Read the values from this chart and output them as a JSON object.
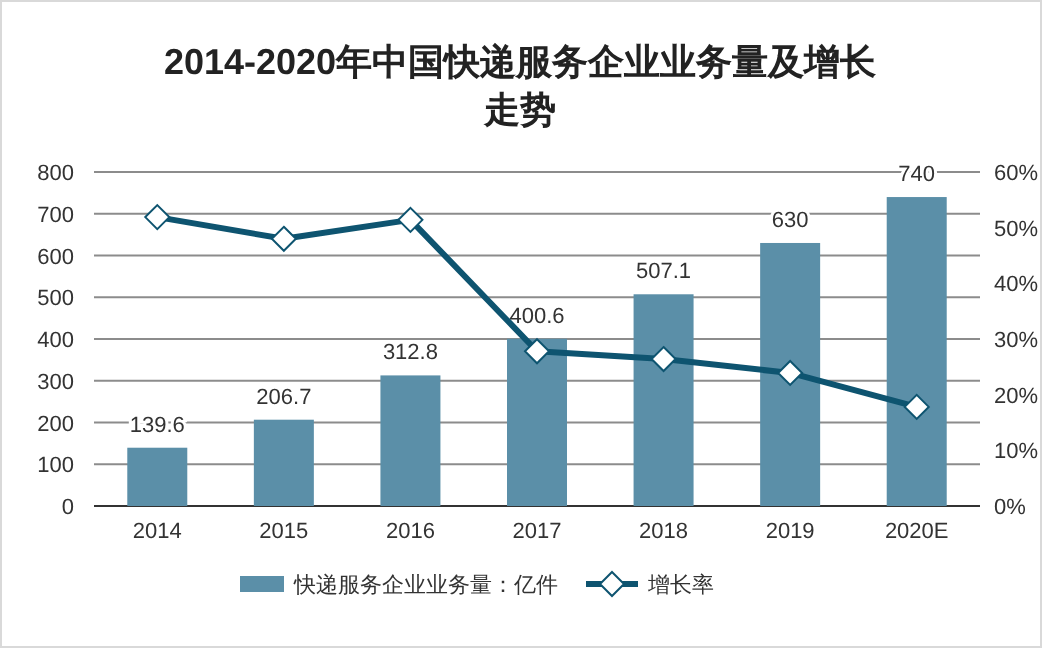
{
  "chart_data": {
    "type": "bar",
    "title": "2014-2020年中国快递服务企业业务量及增长走势",
    "categories": [
      "2014",
      "2015",
      "2016",
      "2017",
      "2018",
      "2019",
      "2020E"
    ],
    "series": [
      {
        "name": "快递服务企业业务量：亿件",
        "color": "#5b8fa8",
        "values": [
          139.6,
          206.7,
          312.8,
          400.6,
          507.1,
          630,
          740
        ],
        "value_labels": [
          "139.6",
          "206.7",
          "312.8",
          "400.6",
          "507.1",
          "630",
          "740"
        ]
      },
      {
        "name": "增长率",
        "type": "line",
        "axis": "y2",
        "color": "#0e5470",
        "marker": "diamond",
        "values": [
          51.9,
          48.0,
          51.4,
          27.8,
          26.4,
          23.9,
          17.8
        ]
      }
    ],
    "ylim": [
      0,
      800
    ],
    "yticks": [
      0,
      100,
      200,
      300,
      400,
      500,
      600,
      700,
      800
    ],
    "y2lim": [
      0,
      60
    ],
    "y2ticks": [
      {
        "value": 0,
        "label": "0%"
      },
      {
        "value": 10,
        "label": "10%"
      },
      {
        "value": 20,
        "label": "20%"
      },
      {
        "value": 30,
        "label": "30%"
      },
      {
        "value": 40,
        "label": "40%"
      },
      {
        "value": 50,
        "label": "50%"
      },
      {
        "value": 60,
        "label": "60%"
      }
    ],
    "grid": "y",
    "legend": "bottom"
  }
}
